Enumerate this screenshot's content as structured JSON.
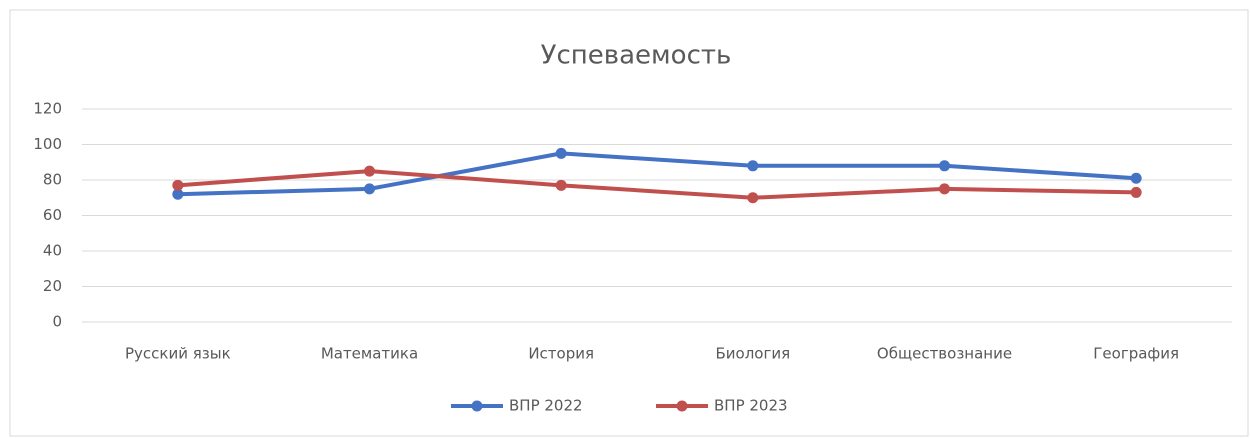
{
  "chart_data": {
    "type": "line",
    "title": "Успеваемость",
    "categories": [
      "Русский язык",
      "Математика",
      "История",
      "Биология",
      "Обществознание",
      "География"
    ],
    "series": [
      {
        "name": "ВПР 2022",
        "color": "#4472c4",
        "values": [
          72,
          75,
          95,
          88,
          88,
          81
        ]
      },
      {
        "name": "ВПР 2023",
        "color": "#c0504d",
        "values": [
          77,
          85,
          77,
          70,
          75,
          73
        ]
      }
    ],
    "ylim": [
      0,
      120
    ],
    "yticks": [
      0,
      20,
      40,
      60,
      80,
      100,
      120
    ],
    "grid": true,
    "legend": "bottom"
  }
}
